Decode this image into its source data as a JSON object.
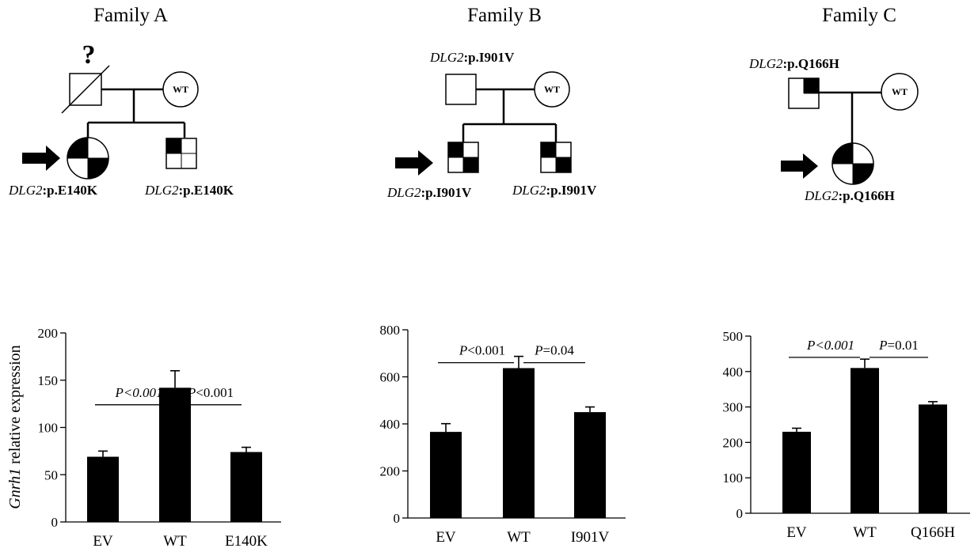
{
  "families": [
    {
      "title": "Family A",
      "father_mark": "?",
      "mother_label": "WT",
      "gene": "DLG2",
      "proband_variant": ":p.E140K",
      "sibling_variant": ":p.E140K"
    },
    {
      "title": "Family B",
      "gene": "DLG2",
      "father_variant": ":p.I901V",
      "mother_label": "WT",
      "proband_variant": ":p.I901V",
      "sibling_variant": ":p.I901V"
    },
    {
      "title": "Family C",
      "gene": "DLG2",
      "father_variant": ":p.Q166H",
      "mother_label": "WT",
      "proband_variant": ":p.Q166H"
    }
  ],
  "y_axis_label_italic": "Gnrh1",
  "y_axis_label_rest": " relative expression",
  "chart_data": [
    {
      "type": "bar",
      "categories": [
        "EV",
        "WT",
        "E140K"
      ],
      "values": [
        69,
        142,
        74
      ],
      "errors": [
        6,
        18,
        5
      ],
      "ylim": [
        0,
        200
      ],
      "yticks": [
        0,
        50,
        100,
        150,
        200
      ],
      "ylabel": "Gnrh1 relative expression",
      "comparisons": [
        {
          "from": 0,
          "to": 1,
          "p_italic": "P<0.001",
          "p_rest": "",
          "bar_at": 124
        },
        {
          "from": 1,
          "to": 2,
          "p_italic": "P",
          "p_rest": "<0.001",
          "bar_at": 124
        }
      ],
      "bar_color": "#000000"
    },
    {
      "type": "bar",
      "categories": [
        "EV",
        "WT",
        "I901V"
      ],
      "values": [
        366,
        637,
        450
      ],
      "errors": [
        35,
        50,
        22
      ],
      "ylim": [
        0,
        800
      ],
      "yticks": [
        0,
        200,
        400,
        600,
        800
      ],
      "ylabel": "",
      "comparisons": [
        {
          "from": 0,
          "to": 1,
          "p_italic": "P",
          "p_rest": "<0.001",
          "bar_at": 660
        },
        {
          "from": 1,
          "to": 2,
          "p_italic": "P",
          "p_rest": "=0.04",
          "bar_at": 660
        }
      ],
      "bar_color": "#000000"
    },
    {
      "type": "bar",
      "categories": [
        "EV",
        "WT",
        "Q166H"
      ],
      "values": [
        230,
        410,
        307
      ],
      "errors": [
        10,
        25,
        8
      ],
      "ylim": [
        0,
        500
      ],
      "yticks": [
        0,
        100,
        200,
        300,
        400,
        500
      ],
      "ylabel": "",
      "comparisons": [
        {
          "from": 0,
          "to": 1,
          "p_italic": "P<0.001",
          "p_rest": "",
          "bar_at": 440
        },
        {
          "from": 1,
          "to": 2,
          "p_italic": "P",
          "p_rest": "=0.01",
          "bar_at": 440
        }
      ],
      "bar_color": "#000000"
    }
  ]
}
